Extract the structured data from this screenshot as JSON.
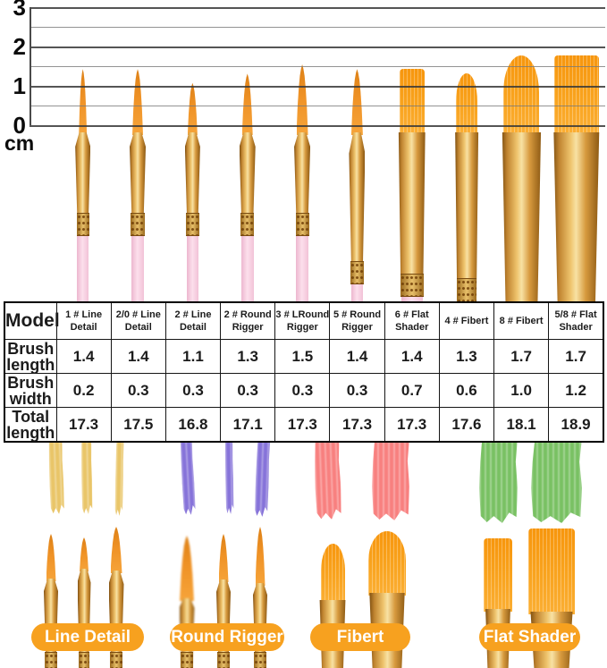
{
  "ruler": {
    "unit": "cm",
    "ticks": [
      "3",
      "2",
      "1",
      "0"
    ]
  },
  "chart_data": {
    "type": "table",
    "unit": "cm",
    "ruler_axis": {
      "label": "cm",
      "range": [
        0,
        3
      ],
      "gridline_step": 0.5,
      "tick_labels": [
        3,
        2,
        1,
        0
      ]
    },
    "categories": [
      "1 # Line Detail",
      "2/0 # Line Detail",
      "2 # Line Detail",
      "2 # Round Rigger",
      "3 # LRound Rigger",
      "5 # Round Rigger",
      "6 # Flat Shader",
      "4 # Fibert",
      "8 # Fibert",
      "5/8 # Flat Shader"
    ],
    "series": [
      {
        "name": "Brush length",
        "values": [
          1.4,
          1.4,
          1.1,
          1.3,
          1.5,
          1.4,
          1.4,
          1.3,
          1.7,
          1.7
        ]
      },
      {
        "name": "Brush width",
        "values": [
          0.2,
          0.3,
          0.3,
          0.3,
          0.3,
          0.3,
          0.7,
          0.6,
          1.0,
          1.2
        ]
      },
      {
        "name": "Total length",
        "values": [
          17.3,
          17.5,
          16.8,
          17.1,
          17.3,
          17.3,
          17.3,
          17.6,
          18.1,
          18.9
        ]
      }
    ],
    "legend_position": "none",
    "grid": true
  },
  "table": {
    "corner_label": "Model",
    "row_labels": [
      "Brush length",
      "Brush width",
      "Total length"
    ],
    "models": [
      "1 # Line Detail",
      "2/0 # Line Detail",
      "2 # Line Detail",
      "2 # Round Rigger",
      "3 # LRound Rigger",
      "5 # Round Rigger",
      "6 # Flat Shader",
      "4 # Fibert",
      "8 # Fibert",
      "5/8 # Flat Shader"
    ],
    "rows": [
      [
        "1.4",
        "1.4",
        "1.1",
        "1.3",
        "1.5",
        "1.4",
        "1.4",
        "1.3",
        "1.7",
        "1.7"
      ],
      [
        "0.2",
        "0.3",
        "0.3",
        "0.3",
        "0.3",
        "0.3",
        "0.7",
        "0.6",
        "1.0",
        "1.2"
      ],
      [
        "17.3",
        "17.5",
        "16.8",
        "17.1",
        "17.3",
        "17.3",
        "17.3",
        "17.6",
        "18.1",
        "18.9"
      ]
    ]
  },
  "brushes": [
    {
      "model": "1 # Line Detail",
      "family": "round",
      "length_cm": 1.4,
      "width_cm": 0.2,
      "total_cm": 17.3
    },
    {
      "model": "2/0 # Line Detail",
      "family": "round",
      "length_cm": 1.4,
      "width_cm": 0.3,
      "total_cm": 17.5
    },
    {
      "model": "2 # Line Detail",
      "family": "round",
      "length_cm": 1.1,
      "width_cm": 0.3,
      "total_cm": 16.8
    },
    {
      "model": "2 # Round Rigger",
      "family": "round",
      "length_cm": 1.3,
      "width_cm": 0.3,
      "total_cm": 17.1
    },
    {
      "model": "3 # LRound Rigger",
      "family": "round",
      "length_cm": 1.5,
      "width_cm": 0.3,
      "total_cm": 17.3
    },
    {
      "model": "5 # Round Rigger",
      "family": "round",
      "length_cm": 1.4,
      "width_cm": 0.3,
      "total_cm": 17.3
    },
    {
      "model": "6 # Flat Shader",
      "family": "flat",
      "length_cm": 1.4,
      "width_cm": 0.7,
      "total_cm": 17.3
    },
    {
      "model": "4 # Fibert",
      "family": "filbert",
      "length_cm": 1.3,
      "width_cm": 0.6,
      "total_cm": 17.6
    },
    {
      "model": "8 # Fibert",
      "family": "filbert",
      "length_cm": 1.7,
      "width_cm": 1.0,
      "total_cm": 18.1
    },
    {
      "model": "5/8 # Flat Shader",
      "family": "flat",
      "length_cm": 1.7,
      "width_cm": 1.2,
      "total_cm": 18.9
    }
  ],
  "paint_strokes": [
    {
      "name": "yellow",
      "hex": "#e9c568"
    },
    {
      "name": "purple",
      "hex": "#8673d9"
    },
    {
      "name": "coral",
      "hex": "#f8807f"
    },
    {
      "name": "green",
      "hex": "#79c163"
    }
  ],
  "brush_groups": [
    {
      "label": "Line Detail"
    },
    {
      "label": "Round Rigger"
    },
    {
      "label": "Fibert"
    },
    {
      "label": "Flat Shader"
    }
  ],
  "colors": {
    "pill_orange": "#f7a11f",
    "bristle_orange": "#f59f2c",
    "ferrule_gold": "#d79a3e",
    "handle_pink": "#f8d7e6",
    "grid_gray": "#787878"
  }
}
